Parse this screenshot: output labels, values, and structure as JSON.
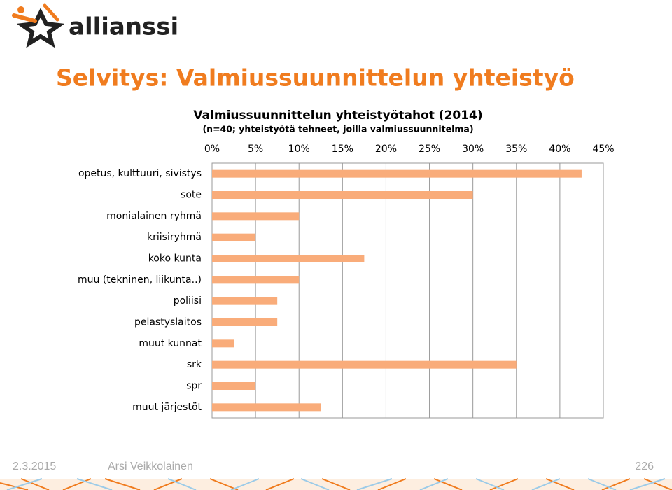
{
  "header": {
    "logo": "allianssi",
    "title": "Selvitys: Valmiussuunnittelun yhteistyö"
  },
  "chart_data": {
    "type": "bar",
    "orientation": "horizontal",
    "title": "Valmiussuunnittelun yhteistyötahot (2014)",
    "subtitle": "(n=40; yhteistyötä tehneet, joilla valmiussuunnitelma)",
    "categories": [
      "opetus, kulttuuri, sivistys",
      "sote",
      "monialainen ryhmä",
      "kriisiryhmä",
      "koko kunta",
      "muu (tekninen, liikunta..)",
      "poliisi",
      "pelastyslaitos",
      "muut kunnat",
      "srk",
      "spr",
      "muut järjestöt"
    ],
    "values": [
      42.5,
      30,
      10,
      5,
      17.5,
      10,
      7.5,
      7.5,
      2.5,
      35,
      5,
      12.5
    ],
    "color": "#f9ac7a",
    "xlim": [
      0,
      45
    ],
    "xticks": [
      {
        "value": 0,
        "label": "0%"
      },
      {
        "value": 5,
        "label": "5%"
      },
      {
        "value": 10,
        "label": "10%"
      },
      {
        "value": 15,
        "label": "15%"
      },
      {
        "value": 20,
        "label": "20%"
      },
      {
        "value": 25,
        "label": "25%"
      },
      {
        "value": 30,
        "label": "30%"
      },
      {
        "value": 35,
        "label": "35%"
      },
      {
        "value": 40,
        "label": "40%"
      },
      {
        "value": 45,
        "label": "45%"
      }
    ],
    "grid": true
  },
  "footer": {
    "date": "2.3.2015",
    "author": "Arsi Veikkolainen",
    "page": "226"
  }
}
